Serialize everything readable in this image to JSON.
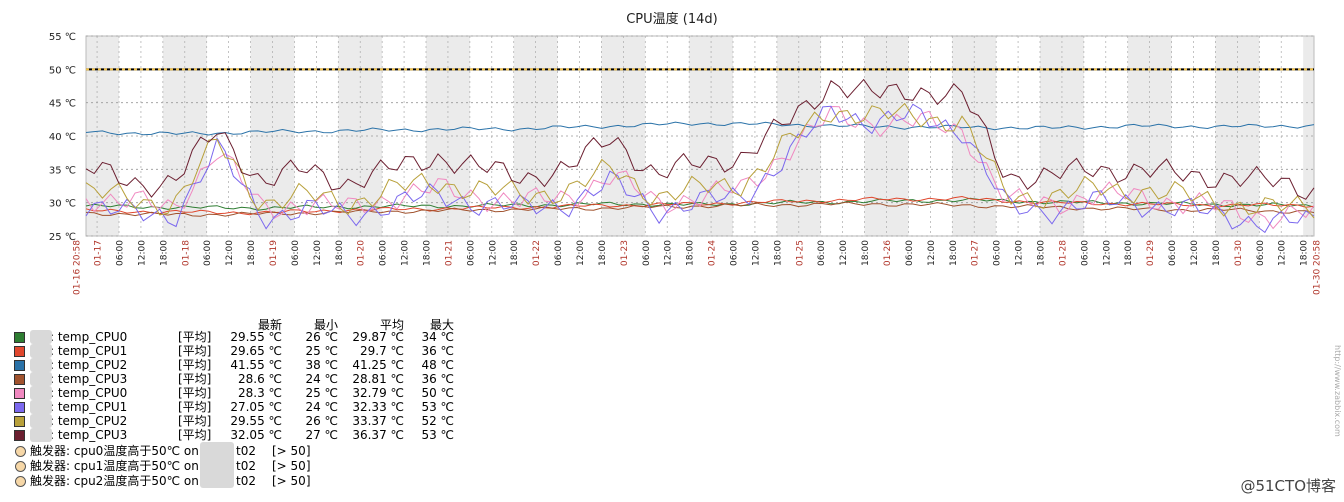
{
  "chart_data": {
    "type": "line",
    "title": "CPU温度 (14d)",
    "y_unit": "℃",
    "ylim": [
      25,
      55
    ],
    "y_ticks": [
      "25 ℃",
      "30 ℃",
      "35 ℃",
      "40 ℃",
      "45 ℃",
      "50 ℃",
      "55 ℃"
    ],
    "x_start": "01-16 20:58",
    "x_end": "01-30 20:58",
    "x_start_label": "01-16 20:58",
    "x_end_label": "01-30 20:58",
    "day_labels": [
      "01-17",
      "01-18",
      "01-19",
      "01-20",
      "01-21",
      "01-22",
      "01-23",
      "01-24",
      "01-25",
      "01-26",
      "01-27",
      "01-28",
      "01-29",
      "01-30"
    ],
    "hour_labels": [
      "06:00",
      "12:00",
      "18:00"
    ],
    "threshold": 50,
    "grid": true,
    "series": [
      {
        "name": "t02: temp_CPU0",
        "color": "#2e7d32",
        "x": [
          0,
          1,
          2,
          3,
          4,
          5,
          6,
          7,
          8,
          9,
          10,
          11,
          12,
          13,
          14
        ],
        "values": [
          29.5,
          29.3,
          29.2,
          29.4,
          29.5,
          29.6,
          29.8,
          29.7,
          30.0,
          30.2,
          30.4,
          30.1,
          29.9,
          29.7,
          29.55
        ]
      },
      {
        "name": "t02: temp_CPU1",
        "color": "#e0472d",
        "x": [
          0,
          1,
          2,
          3,
          4,
          5,
          6,
          7,
          8,
          9,
          10,
          11,
          12,
          13,
          14
        ],
        "values": [
          28.8,
          28.6,
          28.5,
          28.9,
          29.1,
          29.3,
          29.6,
          29.8,
          30.2,
          30.5,
          30.6,
          30.0,
          29.8,
          29.6,
          29.65
        ]
      },
      {
        "name": "t02: temp_CPU2",
        "color": "#2a72a8",
        "x": [
          0,
          1,
          2,
          3,
          4,
          5,
          6,
          7,
          8,
          9,
          10,
          11,
          12,
          13,
          14
        ],
        "values": [
          40.6,
          40.3,
          40.6,
          40.8,
          41.0,
          41.1,
          41.5,
          41.9,
          41.7,
          41.4,
          41.3,
          41.2,
          41.5,
          41.4,
          41.55
        ]
      },
      {
        "name": "t02: temp_CPU3",
        "color": "#a0522d",
        "x": [
          0,
          1,
          2,
          3,
          4,
          5,
          6,
          7,
          8,
          9,
          10,
          11,
          12,
          13,
          14
        ],
        "values": [
          28.4,
          28.2,
          28.3,
          28.6,
          28.8,
          29.0,
          29.2,
          29.5,
          29.7,
          29.8,
          29.6,
          29.3,
          29.0,
          28.9,
          28.6
        ]
      },
      {
        "name": "t01: temp_CPU0",
        "color": "#f088c0",
        "x": [
          0,
          0.6,
          1.0,
          1.5,
          2.0,
          2.5,
          3.0,
          3.5,
          4.0,
          4.5,
          5.0,
          5.5,
          6.0,
          6.5,
          7.0,
          7.5,
          8.0,
          8.5,
          9.0,
          9.5,
          10.0,
          10.5,
          11.0,
          11.5,
          12.0,
          12.5,
          13.0,
          13.5,
          14.0
        ],
        "values": [
          31,
          30,
          29,
          38,
          29,
          30,
          29,
          31,
          32,
          31,
          30,
          31,
          34,
          30,
          31,
          32,
          38,
          43,
          42,
          42,
          41,
          30,
          30,
          31,
          31,
          30,
          29,
          28,
          28.3
        ]
      },
      {
        "name": "t01: temp_CPU1",
        "color": "#7b68ee",
        "x": [
          0,
          0.6,
          1.0,
          1.5,
          2.0,
          2.5,
          3.0,
          3.5,
          4.0,
          4.5,
          5.0,
          5.5,
          6.0,
          6.5,
          7.0,
          7.5,
          8.0,
          8.5,
          9.0,
          9.5,
          10.0,
          10.5,
          11.0,
          11.5,
          12.0,
          12.5,
          13.0,
          13.5,
          14.0
        ],
        "values": [
          30,
          28,
          28,
          38,
          28,
          29,
          28,
          30,
          31,
          30,
          29,
          30,
          33,
          29,
          30,
          31,
          37,
          44,
          42,
          43,
          41,
          29,
          29,
          30,
          30,
          29,
          28,
          27,
          27.05
        ]
      },
      {
        "name": "t01: temp_CPU2",
        "color": "#b8a03a",
        "x": [
          0,
          0.6,
          1.0,
          1.5,
          2.0,
          2.5,
          3.0,
          3.5,
          4.0,
          4.5,
          5.0,
          5.5,
          6.0,
          6.5,
          7.0,
          7.5,
          8.0,
          8.5,
          9.0,
          9.5,
          10.0,
          10.5,
          11.0,
          11.5,
          12.0,
          12.5,
          13.0,
          13.5,
          14.0
        ],
        "values": [
          32,
          30,
          30,
          39,
          30,
          31,
          30,
          32,
          33,
          32,
          31,
          32,
          35,
          31,
          32,
          33,
          39,
          44,
          43,
          43,
          42,
          31,
          31,
          32,
          32,
          31,
          30,
          29,
          29.55
        ]
      },
      {
        "name": "t01: temp_CPU3",
        "color": "#6b1f30",
        "x": [
          0,
          0.6,
          1.0,
          1.5,
          2.0,
          2.5,
          3.0,
          3.5,
          4.0,
          4.5,
          5.0,
          5.5,
          6.0,
          6.5,
          7.0,
          7.5,
          8.0,
          8.5,
          9.0,
          9.5,
          10.0,
          10.5,
          11.0,
          11.5,
          12.0,
          12.5,
          13.0,
          13.5,
          14.0
        ],
        "values": [
          35,
          33,
          33,
          41,
          33,
          35,
          33,
          35,
          37,
          35,
          34,
          35,
          40,
          34,
          36,
          37,
          42,
          48,
          46,
          47,
          46,
          34,
          34,
          35,
          35,
          34,
          34,
          33,
          32.05
        ]
      }
    ]
  },
  "legend": {
    "header": {
      "last": "最新",
      "min": "最小",
      "avg": "平均",
      "max": "最大"
    },
    "items": [
      {
        "name": "t02: temp_CPU0",
        "agg": "[平均]",
        "last": "29.55 ℃",
        "min": "26 ℃",
        "avg": "29.87 ℃",
        "max": "34 ℃",
        "color": "#2e7d32"
      },
      {
        "name": "t02: temp_CPU1",
        "agg": "[平均]",
        "last": "29.65 ℃",
        "min": "25 ℃",
        "avg": "29.7 ℃",
        "max": "36 ℃",
        "color": "#e0472d"
      },
      {
        "name": "t02: temp_CPU2",
        "agg": "[平均]",
        "last": "41.55 ℃",
        "min": "38 ℃",
        "avg": "41.25 ℃",
        "max": "48 ℃",
        "color": "#2a72a8"
      },
      {
        "name": "t02: temp_CPU3",
        "agg": "[平均]",
        "last": "28.6 ℃",
        "min": "24 ℃",
        "avg": "28.81 ℃",
        "max": "36 ℃",
        "color": "#a0522d"
      },
      {
        "name": "t01: temp_CPU0",
        "agg": "[平均]",
        "last": "28.3 ℃",
        "min": "25 ℃",
        "avg": "32.79 ℃",
        "max": "50 ℃",
        "color": "#f088c0"
      },
      {
        "name": "t01: temp_CPU1",
        "agg": "[平均]",
        "last": "27.05 ℃",
        "min": "24 ℃",
        "avg": "32.33 ℃",
        "max": "53 ℃",
        "color": "#7b68ee"
      },
      {
        "name": "t01: temp_CPU2",
        "agg": "[平均]",
        "last": "29.55 ℃",
        "min": "26 ℃",
        "avg": "33.37 ℃",
        "max": "52 ℃",
        "color": "#b8a03a"
      },
      {
        "name": "t01: temp_CPU3",
        "agg": "[平均]",
        "last": "32.05 ℃",
        "min": "27 ℃",
        "avg": "36.37 ℃",
        "max": "53 ℃",
        "color": "#6b1f30"
      }
    ],
    "triggers": [
      {
        "name": "触发器: cpu0温度高于50℃ on",
        "host": "t02",
        "cond": "[> 50]"
      },
      {
        "name": "触发器: cpu1温度高于50℃ on",
        "host": "t02",
        "cond": "[> 50]"
      },
      {
        "name": "触发器: cpu2温度高于50℃ on",
        "host": "t02",
        "cond": "[> 50]"
      }
    ]
  },
  "watermark": "@51CTO博客",
  "side_mark": "http://www.zabbix.com"
}
